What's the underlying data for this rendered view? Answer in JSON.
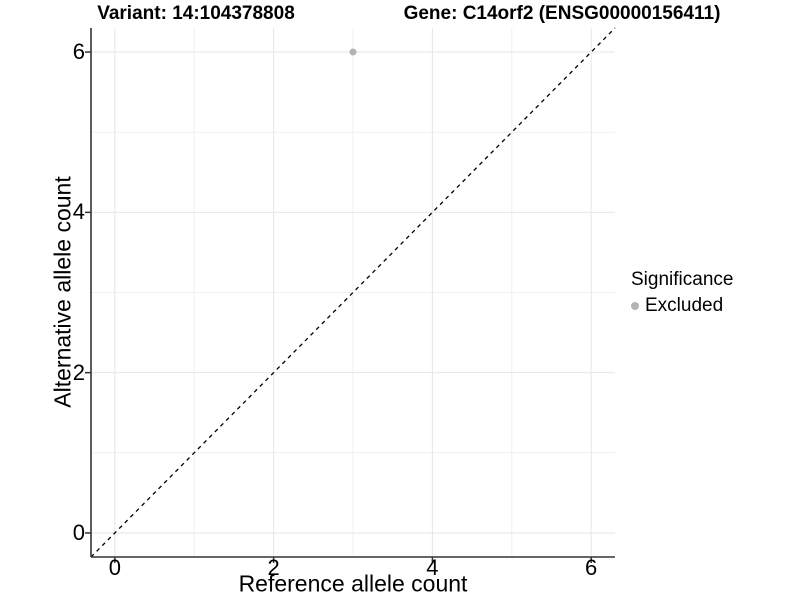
{
  "chart_data": {
    "type": "scatter",
    "titles": {
      "left": "Variant: 14:104378808",
      "right": "Gene: C14orf2 (ENSG00000156411)"
    },
    "xlabel": "Reference allele count",
    "ylabel": "Alternative allele count",
    "xlim": [
      -0.3,
      6.3
    ],
    "ylim": [
      -0.3,
      6.3
    ],
    "xticks": [
      0,
      2,
      4,
      6
    ],
    "yticks": [
      0,
      2,
      4,
      6
    ],
    "minor_gridlines_x": [
      1,
      3,
      5
    ],
    "minor_gridlines_y": [
      1,
      3,
      5
    ],
    "grid": true,
    "series": [
      {
        "name": "Excluded",
        "color": "#b3b3b3",
        "points": [
          [
            3,
            6
          ]
        ]
      }
    ],
    "reference_line": {
      "style": "dashed",
      "slope": 1,
      "intercept": 0,
      "color": "#000000"
    },
    "legend": {
      "title": "Significance",
      "position": "right",
      "items": [
        {
          "label": "Excluded",
          "color": "#b3b3b3",
          "marker": "dot-icon"
        }
      ]
    }
  },
  "colors": {
    "background": "#ffffff",
    "grid_major": "#e6e6e6",
    "grid_minor": "#f0f0f0",
    "axis_line": "#333333",
    "text": "#000000"
  }
}
